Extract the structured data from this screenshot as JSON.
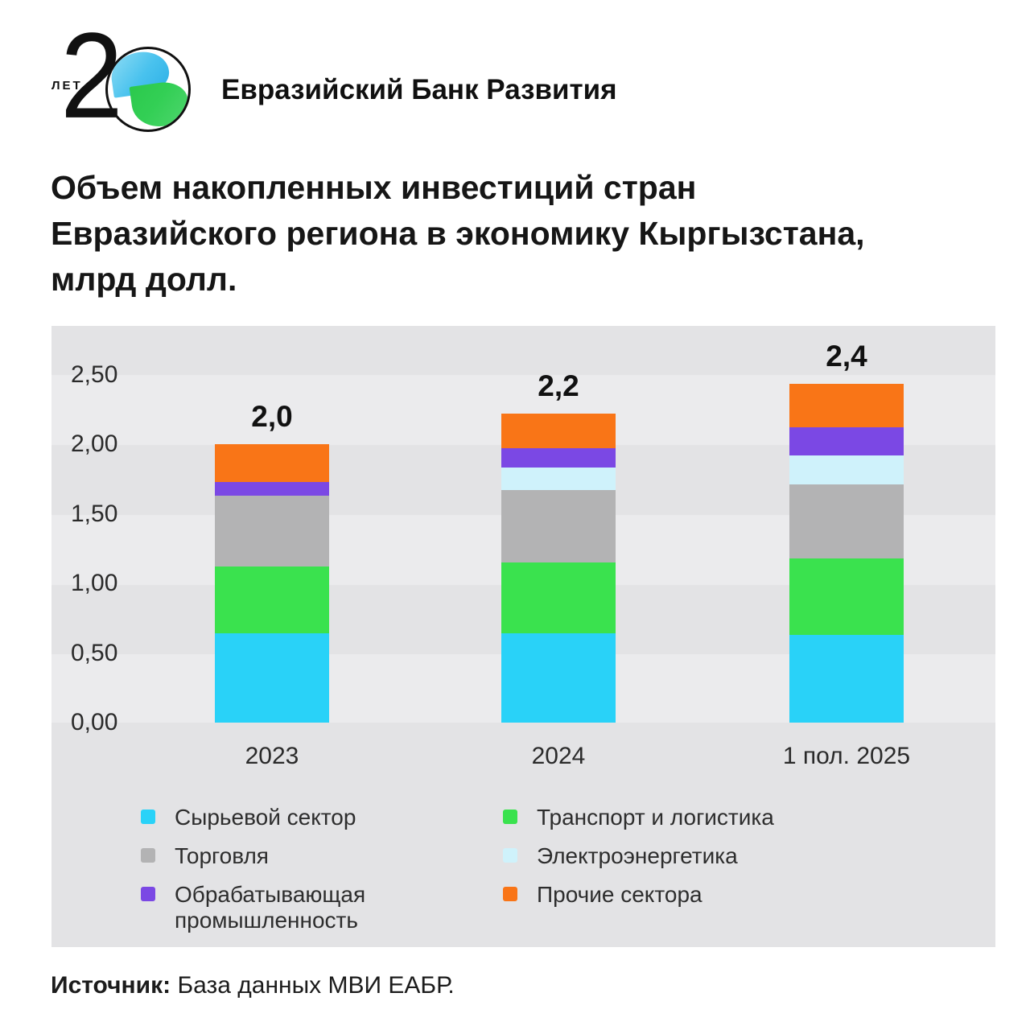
{
  "logo": {
    "years_number": "2",
    "years_label": "ЛЕТ",
    "bank_name": "Евразийский Банк Развития",
    "circle_blue": "#49c2ee",
    "circle_green": "#33cf55"
  },
  "title": {
    "lines": [
      "Объем накопленных инвестиций стран",
      "Евразийского региона в экономику Кыргызстана,",
      "млрд долл."
    ]
  },
  "chart_data": {
    "type": "bar",
    "stacked": true,
    "title": "Объем накопленных инвестиций стран Евразийского региона в экономику Кыргызстана, млрд долл.",
    "categories": [
      "2023",
      "2024",
      "1 пол. 2025"
    ],
    "bar_total_labels": [
      "2,0",
      "2,2",
      "2,4"
    ],
    "bar_totals": [
      2.0,
      2.22,
      2.43
    ],
    "series": [
      {
        "name": "Сырьевой сектор",
        "color": "#29d2f8",
        "values": [
          0.64,
          0.64,
          0.63
        ]
      },
      {
        "name": "Транспорт и логистика",
        "color": "#3ae24e",
        "values": [
          0.48,
          0.51,
          0.55
        ]
      },
      {
        "name": "Торговля",
        "color": "#b3b3b4",
        "values": [
          0.51,
          0.52,
          0.53
        ]
      },
      {
        "name": "Электроэнергетика",
        "color": "#cff2fb",
        "values": [
          0.0,
          0.16,
          0.21
        ]
      },
      {
        "name": "Обрабатывающая промышленность",
        "color": "#7b48e4",
        "values": [
          0.1,
          0.14,
          0.2
        ]
      },
      {
        "name": "Прочие сектора",
        "color": "#f97517",
        "values": [
          0.27,
          0.25,
          0.31
        ]
      }
    ],
    "y_ticks": [
      {
        "value": 2.5,
        "label": "2,50"
      },
      {
        "value": 2.0,
        "label": "2,00"
      },
      {
        "value": 1.5,
        "label": "1,50"
      },
      {
        "value": 1.0,
        "label": "1,00"
      },
      {
        "value": 0.5,
        "label": "0,50"
      },
      {
        "value": 0.0,
        "label": "0,00"
      }
    ],
    "ylim": [
      0,
      2.5
    ],
    "grid": "banded-background",
    "legend_position": "bottom",
    "legend_columns": [
      [
        0,
        2,
        4
      ],
      [
        1,
        3,
        5
      ]
    ]
  },
  "source": {
    "label": "Источник:",
    "text": " База данных МВИ ЕАБР."
  }
}
